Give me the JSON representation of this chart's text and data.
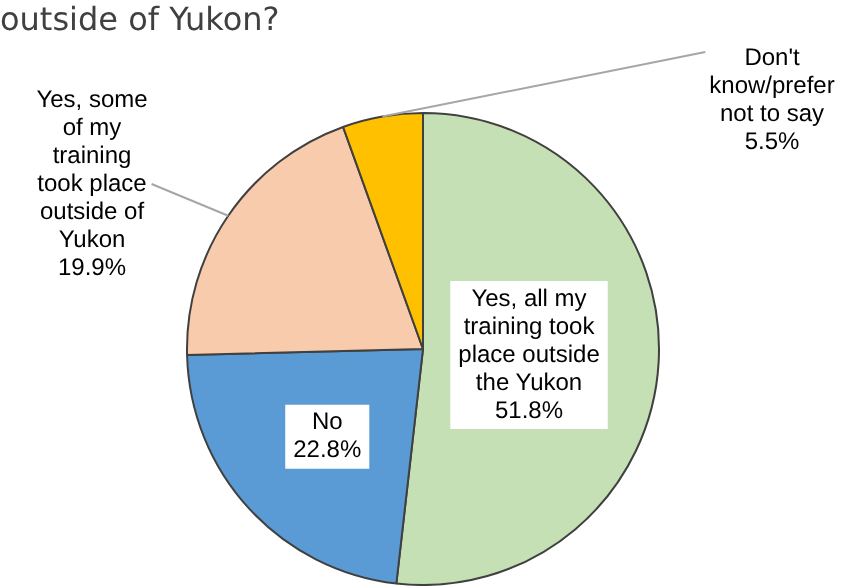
{
  "chart_data": {
    "type": "pie",
    "title": "outside of Yukon?",
    "categories": [
      "Yes, all my\ntraining took\nplace outside\nthe Yukon",
      "No",
      "Yes, some\nof my\ntraining\ntook place\noutside of\nYukon",
      "Don't\nknow/prefer\nnot to say"
    ],
    "values": [
      51.8,
      22.8,
      19.9,
      5.5
    ],
    "value_labels": [
      "51.8%",
      "22.8%",
      "19.9%",
      "5.5%"
    ],
    "colors": [
      "#c5e0b4",
      "#5b9bd5",
      "#f8cbad",
      "#ffc000"
    ],
    "legend": false
  }
}
